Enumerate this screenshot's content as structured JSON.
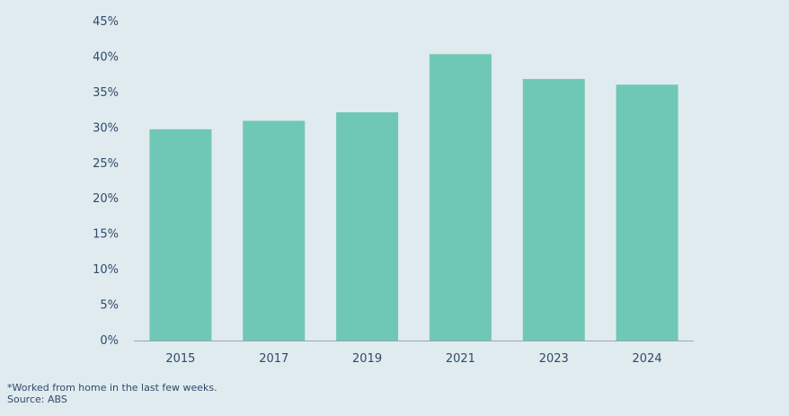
{
  "chart_data": {
    "type": "bar",
    "title": "",
    "xlabel": "",
    "ylabel": "",
    "categories": [
      "2015",
      "2017",
      "2019",
      "2021",
      "2023",
      "2024"
    ],
    "values": [
      29.8,
      31.0,
      32.2,
      40.4,
      36.9,
      36.1
    ],
    "ylim": [
      0,
      45
    ],
    "ytick_values": [
      0,
      5,
      10,
      15,
      20,
      25,
      30,
      35,
      40,
      45
    ],
    "ytick_labels": [
      "0%",
      "5%",
      "10%",
      "15%",
      "20%",
      "25%",
      "30%",
      "35%",
      "40%",
      "45%"
    ],
    "grid": false,
    "legend": "none",
    "bar_color": "#6fc8b6",
    "axis_color": "#9aa5b1",
    "text_color": "#2f4a6b"
  },
  "footnotes": {
    "note": "*Worked from home in the last few weeks.",
    "source": "Source: ABS"
  }
}
